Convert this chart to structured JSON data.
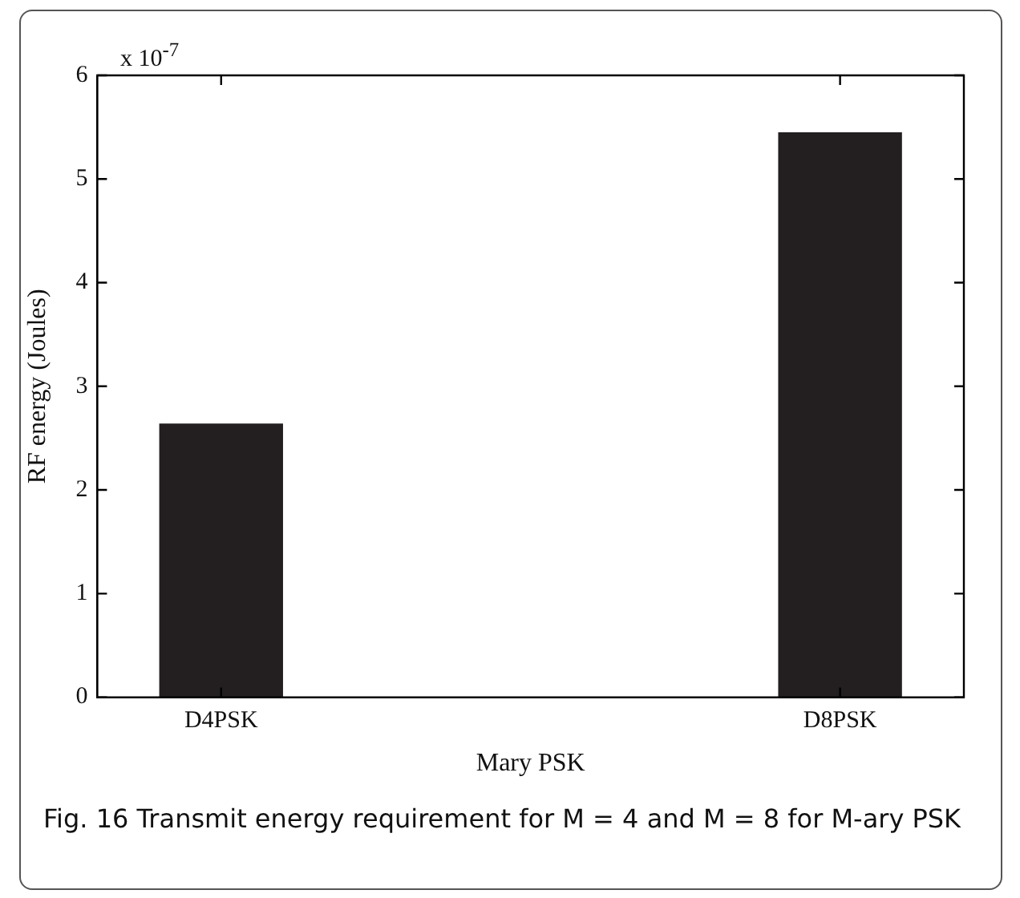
{
  "chart_data": {
    "type": "bar",
    "categories": [
      "D4PSK",
      "D8PSK"
    ],
    "values": [
      2.64,
      5.45
    ],
    "color": "#231f20",
    "ylim": [
      0,
      6
    ],
    "yticks": [
      0,
      1,
      2,
      3,
      4,
      5,
      6
    ],
    "xlabel": "Mary PSK",
    "ylabel": "RF energy (Joules)",
    "grid": false,
    "legend": false,
    "annotations": [
      "x 10$^{-7}$",
      "Fig. 16 Transmit energy requirement for M = 4 and M = 8 for M-ary PSK"
    ]
  }
}
